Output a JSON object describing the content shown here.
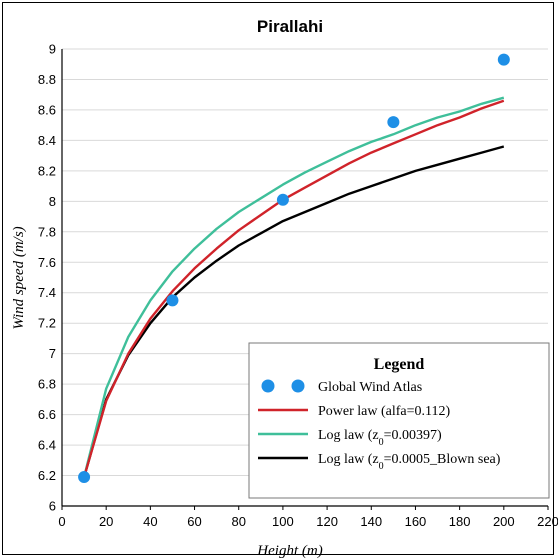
{
  "chart_data": {
    "type": "line",
    "title": "Pirallahi",
    "xlabel": "Height (m)",
    "ylabel": "Wind speed (m/s)",
    "xlim": [
      0,
      220
    ],
    "ylim": [
      6,
      9
    ],
    "xticks": [
      0,
      20,
      40,
      60,
      80,
      100,
      120,
      140,
      160,
      180,
      200,
      220
    ],
    "yticks": [
      6,
      6.2,
      6.4,
      6.6,
      6.8,
      7,
      7.2,
      7.4,
      7.6,
      7.8,
      8,
      8.2,
      8.4,
      8.6,
      8.8,
      9
    ],
    "grid": "horizontal",
    "legend": {
      "title": "Legend",
      "placement": "bottom-right",
      "entries": [
        {
          "label": "Global Wind Atlas"
        },
        {
          "label": "Power law (alfa=0.112)"
        },
        {
          "label_pre": "Log law (z",
          "label_sub": "0",
          "label_post": "=0.00397)"
        },
        {
          "label_pre": "Log law (z",
          "label_sub": "0",
          "label_post": "=0.0005_Blown sea)"
        }
      ]
    },
    "series": [
      {
        "name": "Global Wind Atlas",
        "kind": "scatter",
        "color": "#1e8fe6",
        "x": [
          10,
          50,
          100,
          150,
          200
        ],
        "y": [
          6.19,
          7.35,
          8.01,
          8.52,
          8.93
        ]
      },
      {
        "name": "Power law (alfa=0.112)",
        "kind": "line",
        "color": "#d0232a",
        "x": [
          10,
          20,
          30,
          40,
          50,
          60,
          70,
          80,
          90,
          100,
          110,
          120,
          130,
          140,
          150,
          160,
          170,
          180,
          190,
          200
        ],
        "y": [
          6.19,
          6.69,
          7.0,
          7.23,
          7.41,
          7.56,
          7.69,
          7.81,
          7.91,
          8.01,
          8.09,
          8.17,
          8.25,
          8.32,
          8.38,
          8.44,
          8.5,
          8.55,
          8.61,
          8.66
        ]
      },
      {
        "name": "Log law (z0=0.00397)",
        "kind": "line",
        "color": "#3fbf9a",
        "x": [
          10,
          20,
          30,
          40,
          50,
          60,
          70,
          80,
          90,
          100,
          110,
          120,
          130,
          140,
          150,
          160,
          170,
          180,
          190,
          200
        ],
        "y": [
          6.19,
          6.77,
          7.11,
          7.35,
          7.54,
          7.69,
          7.82,
          7.93,
          8.02,
          8.11,
          8.19,
          8.26,
          8.33,
          8.39,
          8.44,
          8.5,
          8.55,
          8.59,
          8.64,
          8.68
        ]
      },
      {
        "name": "Log law (z0=0.0005_Blown sea)",
        "kind": "line",
        "color": "#000000",
        "x": [
          10,
          20,
          30,
          40,
          50,
          60,
          70,
          80,
          90,
          100,
          110,
          120,
          130,
          140,
          150,
          160,
          170,
          180,
          190,
          200
        ],
        "y": [
          6.19,
          6.7,
          6.99,
          7.2,
          7.37,
          7.5,
          7.61,
          7.71,
          7.79,
          7.87,
          7.93,
          7.99,
          8.05,
          8.1,
          8.15,
          8.2,
          8.24,
          8.28,
          8.32,
          8.36
        ]
      }
    ]
  }
}
